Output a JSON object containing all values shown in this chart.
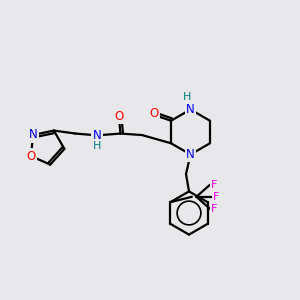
{
  "bg_color": "#e8e8eb",
  "atom_colors": {
    "C": "#000000",
    "N": "#0000ee",
    "O": "#ff0000",
    "F": "#ee00ee",
    "H": "#008080",
    "label": "#000000"
  },
  "bond_color": "#000000",
  "bond_width": 1.6,
  "font_size": 8.5,
  "fig_size": [
    3.0,
    3.0
  ],
  "dpi": 100
}
